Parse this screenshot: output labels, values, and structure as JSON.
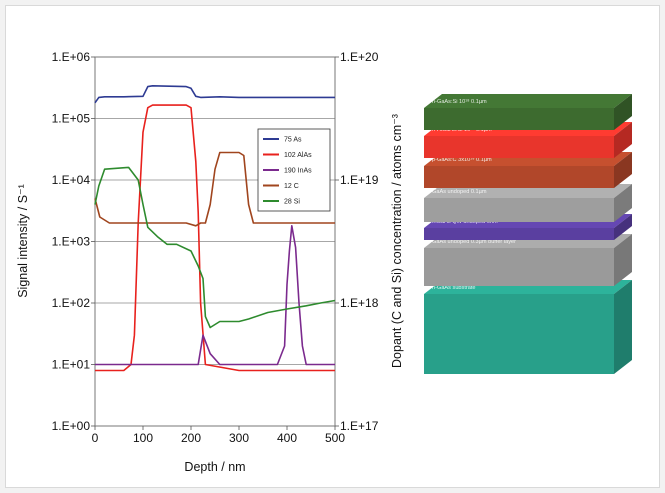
{
  "chart_data": {
    "type": "line",
    "xlabel": "Depth / nm",
    "ylabel": "Signal intensity / S⁻¹",
    "ylabel_right": "Dopant (C and Si) concentration / atoms cm⁻³",
    "xlim": [
      0,
      500
    ],
    "ylim": [
      1,
      1000000
    ],
    "ylim_right": [
      1e+17,
      1e+20
    ],
    "yscale": "log",
    "grid": "horizontal",
    "legend_position": "center-right",
    "x_ticks": [
      "0",
      "100",
      "200",
      "300",
      "400",
      "500"
    ],
    "y_ticks_left": [
      "1.E+00",
      "1.E+01",
      "1.E+02",
      "1.E+03",
      "1.E+04",
      "1.E+05",
      "1.E+06"
    ],
    "y_ticks_right": [
      "1.E+17",
      "1.E+18",
      "1.E+19",
      "1.E+20"
    ],
    "series": [
      {
        "name": "75 As",
        "color": "#2e3b93",
        "points": [
          [
            0,
            180000
          ],
          [
            8,
            220000
          ],
          [
            20,
            225000
          ],
          [
            60,
            225000
          ],
          [
            100,
            230000
          ],
          [
            110,
            330000
          ],
          [
            120,
            340000
          ],
          [
            190,
            330000
          ],
          [
            200,
            310000
          ],
          [
            210,
            230000
          ],
          [
            220,
            220000
          ],
          [
            260,
            225000
          ],
          [
            300,
            220000
          ],
          [
            400,
            220000
          ],
          [
            500,
            220000
          ]
        ]
      },
      {
        "name": "102 AlAs",
        "color": "#e8211d",
        "points": [
          [
            0,
            8
          ],
          [
            60,
            8
          ],
          [
            75,
            10
          ],
          [
            82,
            30
          ],
          [
            90,
            2000
          ],
          [
            100,
            60000
          ],
          [
            110,
            150000
          ],
          [
            120,
            165000
          ],
          [
            190,
            165000
          ],
          [
            200,
            150000
          ],
          [
            210,
            20000
          ],
          [
            215,
            3000
          ],
          [
            220,
            100
          ],
          [
            230,
            10
          ],
          [
            300,
            8
          ],
          [
            400,
            8
          ],
          [
            500,
            8
          ]
        ]
      },
      {
        "name": "190 InAs",
        "color": "#7b2a8e",
        "points": [
          [
            0,
            10
          ],
          [
            130,
            10
          ],
          [
            215,
            10
          ],
          [
            225,
            30
          ],
          [
            240,
            15
          ],
          [
            260,
            10
          ],
          [
            380,
            10
          ],
          [
            395,
            20
          ],
          [
            400,
            200
          ],
          [
            405,
            700
          ],
          [
            410,
            1800
          ],
          [
            418,
            800
          ],
          [
            425,
            100
          ],
          [
            432,
            20
          ],
          [
            440,
            10
          ],
          [
            500,
            10
          ]
        ]
      },
      {
        "name": "12 C",
        "color": "#a0451e",
        "points": [
          [
            0,
            5000
          ],
          [
            10,
            2500
          ],
          [
            30,
            2000
          ],
          [
            100,
            2000
          ],
          [
            190,
            2000
          ],
          [
            210,
            1800
          ],
          [
            220,
            2000
          ],
          [
            230,
            2000
          ],
          [
            240,
            4000
          ],
          [
            250,
            15000
          ],
          [
            260,
            28000
          ],
          [
            300,
            28000
          ],
          [
            310,
            25000
          ],
          [
            320,
            4000
          ],
          [
            330,
            2000
          ],
          [
            400,
            2000
          ],
          [
            500,
            2000
          ]
        ]
      },
      {
        "name": "28 Si",
        "color": "#2e8b2e",
        "points": [
          [
            0,
            4000
          ],
          [
            8,
            8000
          ],
          [
            20,
            15000
          ],
          [
            70,
            16000
          ],
          [
            90,
            10000
          ],
          [
            100,
            4000
          ],
          [
            110,
            1700
          ],
          [
            130,
            1200
          ],
          [
            150,
            900
          ],
          [
            170,
            900
          ],
          [
            200,
            700
          ],
          [
            215,
            400
          ],
          [
            225,
            250
          ],
          [
            230,
            60
          ],
          [
            240,
            40
          ],
          [
            260,
            50
          ],
          [
            300,
            50
          ],
          [
            320,
            55
          ],
          [
            360,
            70
          ],
          [
            400,
            80
          ],
          [
            440,
            90
          ],
          [
            470,
            100
          ],
          [
            500,
            110
          ]
        ]
      }
    ]
  },
  "layers": [
    {
      "label": "n-GaAs:Si 10¹⁸  0.1µm",
      "color": "#3d6b2f"
    },
    {
      "label": "n-AlGaAs:Si 10¹⁸  0.1µm",
      "color": "#e8352c"
    },
    {
      "label": "p-GaAs:C 3x10¹⁹  0.1µm",
      "color": "#b1472a"
    },
    {
      "label": "GaAs undoped 0.1µm",
      "color": "#9e9e9e"
    },
    {
      "label": "InGaAs QW undoped 6nm",
      "color": "#5a3fa0"
    },
    {
      "label": "GaAs undoped 0.3µm buffer layer",
      "color": "#9a9a9a"
    },
    {
      "label": "n-GaAs substrate",
      "color": "#28a08a"
    }
  ]
}
